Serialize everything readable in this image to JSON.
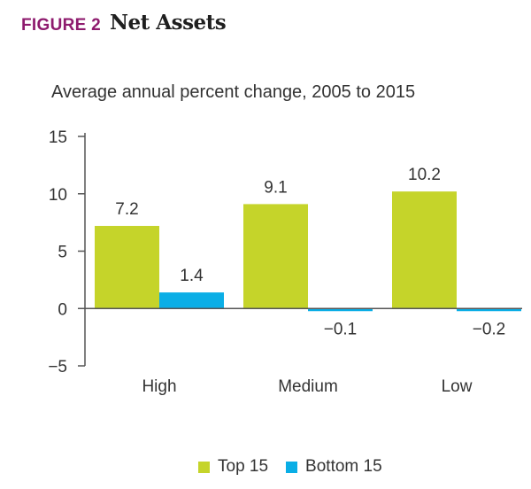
{
  "figure": {
    "label": "FIGURE 2",
    "title": "Net Assets",
    "subtitle": "Average annual percent change, 2005 to 2015"
  },
  "colors": {
    "top15": "#c5d42a",
    "bottom15": "#0aaee6",
    "axis": "#555555",
    "text": "#333333"
  },
  "chart_data": {
    "type": "bar",
    "categories": [
      "High",
      "Medium",
      "Low"
    ],
    "series": [
      {
        "name": "Top 15",
        "values": [
          7.2,
          9.1,
          10.2
        ],
        "labels": [
          "7.2",
          "9.1",
          "10.2"
        ]
      },
      {
        "name": "Bottom 15",
        "values": [
          1.4,
          -0.1,
          -0.2
        ],
        "labels": [
          "1.4",
          "−0.1",
          "−0.2"
        ]
      }
    ],
    "ylim": [
      -5,
      15
    ],
    "yticks": [
      15,
      10,
      5,
      0,
      -5
    ],
    "ytick_labels": [
      "15",
      "10",
      "5",
      "0",
      "−5"
    ],
    "grid": false,
    "legend_position": "bottom"
  }
}
